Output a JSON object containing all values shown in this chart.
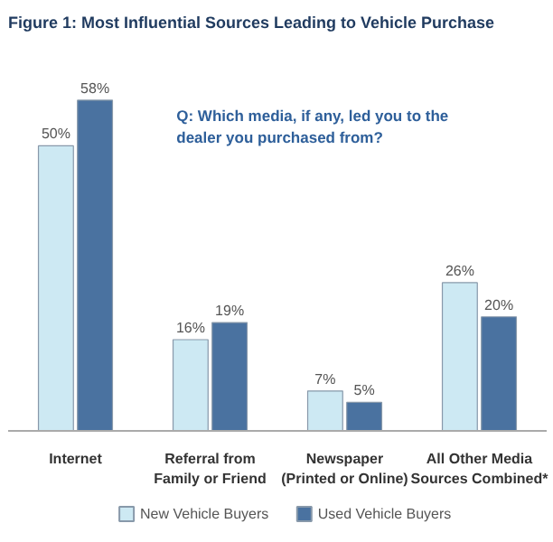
{
  "chart_data": {
    "type": "bar",
    "title": "Figure 1: Most Influential Sources Leading to Vehicle Purchase",
    "categories": [
      "Internet",
      "Referral from\nFamily or Friend",
      "Newspaper\n(Printed or Online)",
      "All Other Media\nSources Combined*"
    ],
    "series": [
      {
        "name": "New Vehicle Buyers",
        "color": "#cde9f3",
        "values": [
          50,
          16,
          7,
          26
        ],
        "value_labels": [
          "50%",
          "16%",
          "7%",
          "26%"
        ]
      },
      {
        "name": "Used Vehicle Buyers",
        "color": "#4a72a0",
        "values": [
          58,
          19,
          5,
          20
        ],
        "value_labels": [
          "58%",
          "19%",
          "5%",
          "20%"
        ]
      }
    ],
    "annotations": [
      "Q: Which media, if any, led you to the\ndealer you purchased from?"
    ],
    "legend": "bottom"
  }
}
